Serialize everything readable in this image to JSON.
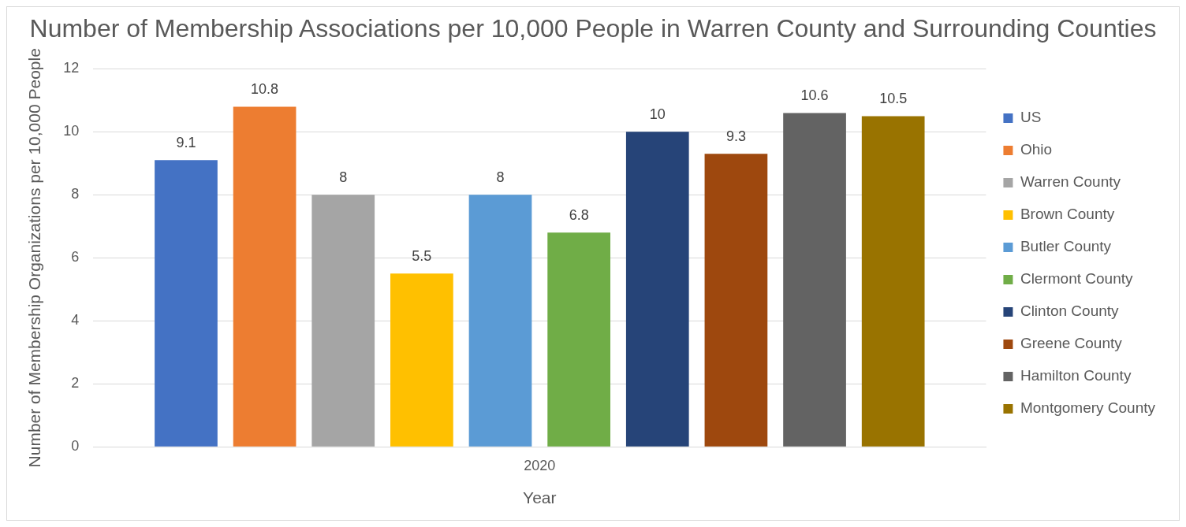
{
  "chart_data": {
    "type": "bar",
    "title": "Number of Membership Associations per 10,000 People in Warren County and Surrounding Counties",
    "xlabel": "Year",
    "ylabel": "Number of Membership Organizations per 10,000 People",
    "categories": [
      "2020"
    ],
    "series": [
      {
        "name": "US",
        "color": "#4472c4",
        "values": [
          9.1
        ]
      },
      {
        "name": "Ohio",
        "color": "#ed7d31",
        "values": [
          10.8
        ]
      },
      {
        "name": "Warren County",
        "color": "#a5a5a5",
        "values": [
          8
        ]
      },
      {
        "name": "Brown County",
        "color": "#ffc000",
        "values": [
          5.5
        ]
      },
      {
        "name": "Butler County",
        "color": "#5b9bd5",
        "values": [
          8
        ]
      },
      {
        "name": "Clermont County",
        "color": "#70ad47",
        "values": [
          6.8
        ]
      },
      {
        "name": "Clinton County",
        "color": "#264478",
        "values": [
          10
        ]
      },
      {
        "name": "Greene County",
        "color": "#9e480e",
        "values": [
          9.3
        ]
      },
      {
        "name": "Hamilton County",
        "color": "#636363",
        "values": [
          10.6
        ]
      },
      {
        "name": "Montgomery County",
        "color": "#997300",
        "values": [
          10.5
        ]
      }
    ],
    "ylim": [
      0,
      12
    ],
    "yticks": [
      0,
      2,
      4,
      6,
      8,
      10,
      12
    ],
    "grid": "y",
    "legend": "right",
    "data_labels": true
  }
}
